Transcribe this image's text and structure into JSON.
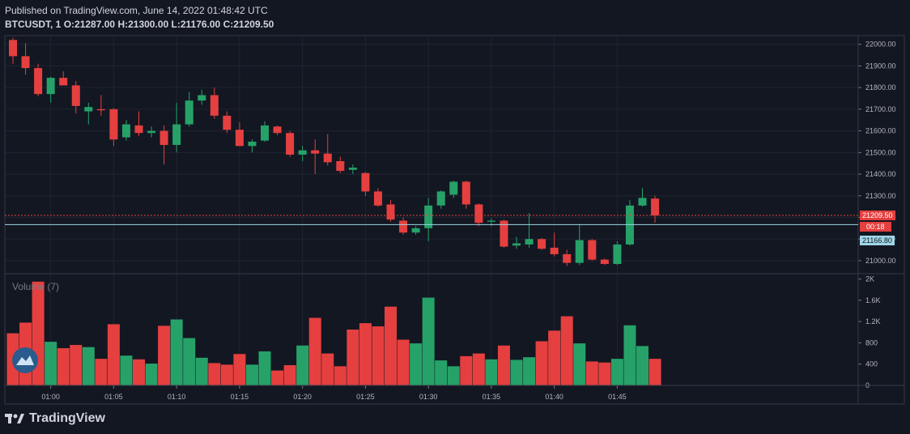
{
  "header": {
    "published": "Published on TradingView.com, June 14, 2022 01:48:42 UTC",
    "symbol_line": "BTCUSDT, 1",
    "ohlc": {
      "open_label": "O:",
      "open": "21287.00",
      "high_label": "H:",
      "high": "21300.00",
      "low_label": "L:",
      "low": "21176.00",
      "close_label": "C:",
      "close": "21209.50"
    }
  },
  "volume_pane": {
    "title": "Volume (7)"
  },
  "footer": {
    "brand": "TradingView"
  },
  "price_tags": {
    "last_price": "21209.50",
    "countdown": "00:18",
    "line_price": "21166.80"
  },
  "colors": {
    "up": "#26a269",
    "down": "#e5403f",
    "background": "#131722",
    "grid": "#1f2430",
    "text": "#b2b5be",
    "last_price_tag": "#e5403f",
    "line_tag": "#9fd6e6"
  },
  "chart_data": [
    {
      "type": "candlestick",
      "y_ticks": [
        "21000.00",
        "21100.00",
        "21200.00",
        "21300.00",
        "21400.00",
        "21500.00",
        "21600.00",
        "21700.00",
        "21800.00",
        "21900.00",
        "22000.00"
      ],
      "ylim": [
        20940,
        22040
      ],
      "x_ticks": [
        "01:00",
        "01:05",
        "01:10",
        "01:15",
        "01:20",
        "01:25",
        "01:30",
        "01:35",
        "01:40",
        "01:45"
      ],
      "x_tick_index": [
        3,
        8,
        13,
        18,
        23,
        28,
        33,
        38,
        43,
        48
      ],
      "horizontal_line": 21166.8,
      "last_price": 21209.5,
      "candles": [
        {
          "o": 22020,
          "h": 22030,
          "l": 21910,
          "c": 21945
        },
        {
          "o": 21945,
          "h": 22005,
          "l": 21860,
          "c": 21890
        },
        {
          "o": 21890,
          "h": 21910,
          "l": 21760,
          "c": 21770
        },
        {
          "o": 21770,
          "h": 21850,
          "l": 21730,
          "c": 21845
        },
        {
          "o": 21845,
          "h": 21875,
          "l": 21810,
          "c": 21810
        },
        {
          "o": 21810,
          "h": 21830,
          "l": 21680,
          "c": 21715
        },
        {
          "o": 21690,
          "h": 21730,
          "l": 21630,
          "c": 21710
        },
        {
          "o": 21700,
          "h": 21765,
          "l": 21670,
          "c": 21695
        },
        {
          "o": 21700,
          "h": 21705,
          "l": 21530,
          "c": 21560
        },
        {
          "o": 21570,
          "h": 21650,
          "l": 21555,
          "c": 21630
        },
        {
          "o": 21625,
          "h": 21690,
          "l": 21575,
          "c": 21590
        },
        {
          "o": 21590,
          "h": 21620,
          "l": 21570,
          "c": 21600
        },
        {
          "o": 21600,
          "h": 21625,
          "l": 21445,
          "c": 21535
        },
        {
          "o": 21535,
          "h": 21730,
          "l": 21500,
          "c": 21630
        },
        {
          "o": 21630,
          "h": 21780,
          "l": 21620,
          "c": 21740
        },
        {
          "o": 21740,
          "h": 21790,
          "l": 21720,
          "c": 21765
        },
        {
          "o": 21765,
          "h": 21800,
          "l": 21655,
          "c": 21670
        },
        {
          "o": 21670,
          "h": 21690,
          "l": 21590,
          "c": 21605
        },
        {
          "o": 21605,
          "h": 21640,
          "l": 21530,
          "c": 21530
        },
        {
          "o": 21530,
          "h": 21560,
          "l": 21500,
          "c": 21550
        },
        {
          "o": 21555,
          "h": 21645,
          "l": 21550,
          "c": 21625
        },
        {
          "o": 21620,
          "h": 21625,
          "l": 21580,
          "c": 21590
        },
        {
          "o": 21590,
          "h": 21600,
          "l": 21480,
          "c": 21490
        },
        {
          "o": 21490,
          "h": 21530,
          "l": 21460,
          "c": 21510
        },
        {
          "o": 21510,
          "h": 21560,
          "l": 21400,
          "c": 21495
        },
        {
          "o": 21495,
          "h": 21585,
          "l": 21440,
          "c": 21455
        },
        {
          "o": 21460,
          "h": 21480,
          "l": 21405,
          "c": 21415
        },
        {
          "o": 21420,
          "h": 21445,
          "l": 21400,
          "c": 21430
        },
        {
          "o": 21405,
          "h": 21410,
          "l": 21300,
          "c": 21320
        },
        {
          "o": 21320,
          "h": 21335,
          "l": 21250,
          "c": 21255
        },
        {
          "o": 21260,
          "h": 21280,
          "l": 21180,
          "c": 21190
        },
        {
          "o": 21185,
          "h": 21200,
          "l": 21120,
          "c": 21130
        },
        {
          "o": 21130,
          "h": 21160,
          "l": 21120,
          "c": 21150
        },
        {
          "o": 21150,
          "h": 21290,
          "l": 21090,
          "c": 21255
        },
        {
          "o": 21255,
          "h": 21325,
          "l": 21240,
          "c": 21320
        },
        {
          "o": 21305,
          "h": 21370,
          "l": 21290,
          "c": 21365
        },
        {
          "o": 21365,
          "h": 21370,
          "l": 21240,
          "c": 21260
        },
        {
          "o": 21260,
          "h": 21265,
          "l": 21160,
          "c": 21175
        },
        {
          "o": 21180,
          "h": 21195,
          "l": 21160,
          "c": 21185
        },
        {
          "o": 21185,
          "h": 21190,
          "l": 21060,
          "c": 21065
        },
        {
          "o": 21070,
          "h": 21110,
          "l": 21055,
          "c": 21080
        },
        {
          "o": 21075,
          "h": 21220,
          "l": 21060,
          "c": 21100
        },
        {
          "o": 21100,
          "h": 21105,
          "l": 21050,
          "c": 21055
        },
        {
          "o": 21060,
          "h": 21130,
          "l": 21020,
          "c": 21030
        },
        {
          "o": 21030,
          "h": 21050,
          "l": 20975,
          "c": 20990
        },
        {
          "o": 20990,
          "h": 21170,
          "l": 20980,
          "c": 21095
        },
        {
          "o": 21095,
          "h": 21100,
          "l": 21000,
          "c": 21005
        },
        {
          "o": 21005,
          "h": 21010,
          "l": 20980,
          "c": 20985
        },
        {
          "o": 20985,
          "h": 21090,
          "l": 20980,
          "c": 21075
        },
        {
          "o": 21075,
          "h": 21280,
          "l": 21070,
          "c": 21255
        },
        {
          "o": 21255,
          "h": 21335,
          "l": 21250,
          "c": 21290
        },
        {
          "o": 21287,
          "h": 21300,
          "l": 21176,
          "c": 21209.5
        }
      ]
    },
    {
      "type": "bar",
      "title": "Volume (7)",
      "y_ticks": [
        "0",
        "400",
        "800",
        "1.2K",
        "1.6K",
        "2K"
      ],
      "ylim": [
        0,
        2100
      ],
      "values": [
        980,
        1180,
        1950,
        820,
        700,
        760,
        720,
        500,
        1150,
        560,
        490,
        410,
        1120,
        1240,
        890,
        520,
        420,
        390,
        590,
        390,
        640,
        280,
        380,
        750,
        1270,
        600,
        360,
        1050,
        1170,
        1110,
        1480,
        860,
        790,
        1650,
        470,
        360,
        550,
        600,
        490,
        750,
        480,
        530,
        830,
        1030,
        1300,
        790,
        450,
        430,
        500,
        1130,
        740,
        500
      ],
      "up": [
        false,
        false,
        false,
        true,
        false,
        false,
        true,
        false,
        false,
        true,
        false,
        true,
        false,
        true,
        true,
        true,
        false,
        false,
        false,
        true,
        true,
        false,
        false,
        true,
        false,
        false,
        false,
        false,
        false,
        false,
        false,
        false,
        true,
        true,
        true,
        true,
        false,
        false,
        true,
        false,
        true,
        true,
        false,
        false,
        false,
        true,
        false,
        false,
        true,
        true,
        true,
        false
      ]
    }
  ]
}
